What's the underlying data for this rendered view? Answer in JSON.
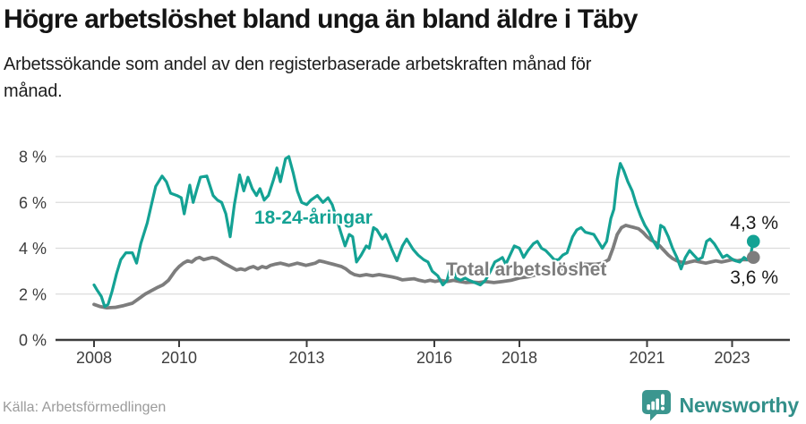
{
  "header": {
    "title": "Högre arbetslöshet bland unga än bland äldre i Täby",
    "subtitle_line1": "Arbetssökande som andel av den registerbaserade arbetskraften månad för",
    "subtitle_line2": "månad."
  },
  "chart_data": {
    "type": "line",
    "title": "Högre arbetslöshet bland unga än bland äldre i Täby",
    "subtitle": "Arbetssökande som andel av den registerbaserade arbetskraften månad för månad.",
    "xlabel": "",
    "ylabel": "",
    "ylim": [
      0,
      8
    ],
    "grid": true,
    "legend_position": "inline-labels",
    "y_ticks": [
      {
        "value": 0,
        "label": "0 %"
      },
      {
        "value": 2,
        "label": "2 %"
      },
      {
        "value": 4,
        "label": "4 %"
      },
      {
        "value": 6,
        "label": "6 %"
      },
      {
        "value": 8,
        "label": "8 %"
      }
    ],
    "x_ticks": [
      {
        "value": 2008,
        "label": "2008"
      },
      {
        "value": 2010,
        "label": "2010"
      },
      {
        "value": 2013,
        "label": "2013"
      },
      {
        "value": 2016,
        "label": "2016"
      },
      {
        "value": 2018,
        "label": "2018"
      },
      {
        "value": 2021,
        "label": "2021"
      },
      {
        "value": 2023,
        "label": "2023"
      }
    ],
    "series": [
      {
        "id": "total",
        "name": "Total arbetslöshet",
        "color": "#7d7d7d",
        "end_label": "3,6 %",
        "end_value": 3.6,
        "points": [
          [
            2008.0,
            1.55
          ],
          [
            2008.15,
            1.45
          ],
          [
            2008.3,
            1.4
          ],
          [
            2008.5,
            1.42
          ],
          [
            2008.7,
            1.5
          ],
          [
            2008.9,
            1.6
          ],
          [
            2009.05,
            1.8
          ],
          [
            2009.2,
            2.0
          ],
          [
            2009.35,
            2.15
          ],
          [
            2009.5,
            2.3
          ],
          [
            2009.62,
            2.4
          ],
          [
            2009.75,
            2.6
          ],
          [
            2009.9,
            3.0
          ],
          [
            2010.0,
            3.2
          ],
          [
            2010.1,
            3.35
          ],
          [
            2010.2,
            3.45
          ],
          [
            2010.3,
            3.4
          ],
          [
            2010.4,
            3.55
          ],
          [
            2010.48,
            3.6
          ],
          [
            2010.58,
            3.5
          ],
          [
            2010.68,
            3.55
          ],
          [
            2010.78,
            3.6
          ],
          [
            2010.88,
            3.55
          ],
          [
            2010.97,
            3.45
          ],
          [
            2011.05,
            3.35
          ],
          [
            2011.15,
            3.25
          ],
          [
            2011.25,
            3.15
          ],
          [
            2011.35,
            3.05
          ],
          [
            2011.45,
            3.1
          ],
          [
            2011.55,
            3.05
          ],
          [
            2011.65,
            3.15
          ],
          [
            2011.75,
            3.2
          ],
          [
            2011.85,
            3.1
          ],
          [
            2011.95,
            3.2
          ],
          [
            2012.05,
            3.15
          ],
          [
            2012.15,
            3.25
          ],
          [
            2012.25,
            3.3
          ],
          [
            2012.38,
            3.35
          ],
          [
            2012.48,
            3.3
          ],
          [
            2012.58,
            3.25
          ],
          [
            2012.68,
            3.3
          ],
          [
            2012.78,
            3.35
          ],
          [
            2012.88,
            3.3
          ],
          [
            2012.98,
            3.25
          ],
          [
            2013.1,
            3.3
          ],
          [
            2013.2,
            3.35
          ],
          [
            2013.3,
            3.45
          ],
          [
            2013.42,
            3.4
          ],
          [
            2013.52,
            3.35
          ],
          [
            2013.62,
            3.3
          ],
          [
            2013.72,
            3.25
          ],
          [
            2013.82,
            3.2
          ],
          [
            2013.92,
            3.1
          ],
          [
            2014.02,
            2.95
          ],
          [
            2014.12,
            2.85
          ],
          [
            2014.25,
            2.8
          ],
          [
            2014.4,
            2.85
          ],
          [
            2014.55,
            2.8
          ],
          [
            2014.7,
            2.85
          ],
          [
            2014.85,
            2.8
          ],
          [
            2015.0,
            2.75
          ],
          [
            2015.12,
            2.7
          ],
          [
            2015.25,
            2.62
          ],
          [
            2015.4,
            2.65
          ],
          [
            2015.52,
            2.67
          ],
          [
            2015.65,
            2.6
          ],
          [
            2015.78,
            2.55
          ],
          [
            2015.9,
            2.6
          ],
          [
            2016.02,
            2.55
          ],
          [
            2016.15,
            2.6
          ],
          [
            2016.3,
            2.55
          ],
          [
            2016.45,
            2.6
          ],
          [
            2016.6,
            2.55
          ],
          [
            2016.75,
            2.5
          ],
          [
            2016.9,
            2.52
          ],
          [
            2017.05,
            2.5
          ],
          [
            2017.2,
            2.55
          ],
          [
            2017.4,
            2.5
          ],
          [
            2017.6,
            2.55
          ],
          [
            2017.8,
            2.6
          ],
          [
            2018.0,
            2.7
          ],
          [
            2018.2,
            2.75
          ],
          [
            2018.4,
            2.85
          ],
          [
            2018.6,
            2.9
          ],
          [
            2018.8,
            3.0
          ],
          [
            2019.0,
            3.1
          ],
          [
            2019.2,
            3.2
          ],
          [
            2019.4,
            3.3
          ],
          [
            2019.6,
            3.3
          ],
          [
            2019.8,
            3.3
          ],
          [
            2019.95,
            3.35
          ],
          [
            2020.1,
            3.5
          ],
          [
            2020.2,
            4.0
          ],
          [
            2020.3,
            4.6
          ],
          [
            2020.4,
            4.9
          ],
          [
            2020.5,
            5.0
          ],
          [
            2020.6,
            4.95
          ],
          [
            2020.7,
            4.9
          ],
          [
            2020.8,
            4.85
          ],
          [
            2020.9,
            4.7
          ],
          [
            2021.0,
            4.5
          ],
          [
            2021.1,
            4.35
          ],
          [
            2021.2,
            4.25
          ],
          [
            2021.3,
            4.1
          ],
          [
            2021.4,
            3.9
          ],
          [
            2021.5,
            3.7
          ],
          [
            2021.6,
            3.55
          ],
          [
            2021.7,
            3.45
          ],
          [
            2021.8,
            3.4
          ],
          [
            2021.9,
            3.35
          ],
          [
            2022.0,
            3.4
          ],
          [
            2022.12,
            3.45
          ],
          [
            2022.25,
            3.4
          ],
          [
            2022.38,
            3.35
          ],
          [
            2022.5,
            3.4
          ],
          [
            2022.62,
            3.45
          ],
          [
            2022.75,
            3.4
          ],
          [
            2022.88,
            3.45
          ],
          [
            2023.0,
            3.5
          ],
          [
            2023.12,
            3.45
          ],
          [
            2023.25,
            3.5
          ],
          [
            2023.38,
            3.5
          ],
          [
            2023.5,
            3.6
          ]
        ]
      },
      {
        "id": "youth",
        "name": "18-24-åringar",
        "color": "#14A294",
        "end_label": "4,3 %",
        "end_value": 4.3,
        "points": [
          [
            2008.0,
            2.4
          ],
          [
            2008.08,
            2.15
          ],
          [
            2008.17,
            1.9
          ],
          [
            2008.25,
            1.45
          ],
          [
            2008.33,
            1.55
          ],
          [
            2008.42,
            2.1
          ],
          [
            2008.53,
            2.9
          ],
          [
            2008.63,
            3.5
          ],
          [
            2008.75,
            3.8
          ],
          [
            2008.9,
            3.8
          ],
          [
            2009.0,
            3.35
          ],
          [
            2009.1,
            4.2
          ],
          [
            2009.15,
            4.5
          ],
          [
            2009.25,
            5.1
          ],
          [
            2009.35,
            5.9
          ],
          [
            2009.45,
            6.7
          ],
          [
            2009.6,
            7.15
          ],
          [
            2009.7,
            6.9
          ],
          [
            2009.8,
            6.4
          ],
          [
            2009.95,
            6.3
          ],
          [
            2010.05,
            6.2
          ],
          [
            2010.12,
            5.5
          ],
          [
            2010.25,
            6.75
          ],
          [
            2010.33,
            6.0
          ],
          [
            2010.42,
            6.6
          ],
          [
            2010.5,
            7.1
          ],
          [
            2010.65,
            7.15
          ],
          [
            2010.8,
            6.3
          ],
          [
            2010.9,
            6.1
          ],
          [
            2011.0,
            6.0
          ],
          [
            2011.1,
            5.5
          ],
          [
            2011.2,
            4.5
          ],
          [
            2011.3,
            5.9
          ],
          [
            2011.42,
            7.2
          ],
          [
            2011.52,
            6.5
          ],
          [
            2011.62,
            7.1
          ],
          [
            2011.72,
            6.6
          ],
          [
            2011.82,
            6.3
          ],
          [
            2011.9,
            6.6
          ],
          [
            2012.0,
            6.1
          ],
          [
            2012.1,
            6.3
          ],
          [
            2012.22,
            7.0
          ],
          [
            2012.3,
            7.5
          ],
          [
            2012.38,
            6.9
          ],
          [
            2012.5,
            7.9
          ],
          [
            2012.58,
            8.0
          ],
          [
            2012.68,
            7.3
          ],
          [
            2012.78,
            6.5
          ],
          [
            2012.88,
            6.0
          ],
          [
            2013.0,
            5.9
          ],
          [
            2013.1,
            6.1
          ],
          [
            2013.25,
            6.3
          ],
          [
            2013.38,
            6.0
          ],
          [
            2013.5,
            6.2
          ],
          [
            2013.6,
            5.9
          ],
          [
            2013.7,
            5.3
          ],
          [
            2013.8,
            4.7
          ],
          [
            2013.9,
            4.1
          ],
          [
            2014.0,
            4.6
          ],
          [
            2014.08,
            4.5
          ],
          [
            2014.17,
            3.4
          ],
          [
            2014.28,
            3.7
          ],
          [
            2014.4,
            4.1
          ],
          [
            2014.47,
            4.0
          ],
          [
            2014.57,
            4.9
          ],
          [
            2014.65,
            4.8
          ],
          [
            2014.78,
            4.4
          ],
          [
            2014.86,
            4.6
          ],
          [
            2015.0,
            3.95
          ],
          [
            2015.12,
            3.45
          ],
          [
            2015.25,
            4.1
          ],
          [
            2015.35,
            4.4
          ],
          [
            2015.5,
            3.95
          ],
          [
            2015.62,
            3.7
          ],
          [
            2015.75,
            3.5
          ],
          [
            2015.85,
            3.4
          ],
          [
            2015.95,
            3.0
          ],
          [
            2016.08,
            2.8
          ],
          [
            2016.2,
            2.4
          ],
          [
            2016.3,
            2.6
          ],
          [
            2016.4,
            3.3
          ],
          [
            2016.5,
            2.7
          ],
          [
            2016.62,
            2.6
          ],
          [
            2016.72,
            2.7
          ],
          [
            2016.82,
            2.6
          ],
          [
            2016.95,
            2.5
          ],
          [
            2017.08,
            2.4
          ],
          [
            2017.2,
            2.6
          ],
          [
            2017.32,
            3.0
          ],
          [
            2017.42,
            3.4
          ],
          [
            2017.52,
            3.5
          ],
          [
            2017.6,
            3.6
          ],
          [
            2017.68,
            3.3
          ],
          [
            2017.78,
            3.7
          ],
          [
            2017.88,
            4.1
          ],
          [
            2018.0,
            4.0
          ],
          [
            2018.1,
            3.6
          ],
          [
            2018.2,
            3.9
          ],
          [
            2018.33,
            4.2
          ],
          [
            2018.42,
            4.3
          ],
          [
            2018.52,
            4.0
          ],
          [
            2018.62,
            3.9
          ],
          [
            2018.72,
            3.7
          ],
          [
            2018.82,
            3.5
          ],
          [
            2018.92,
            3.5
          ],
          [
            2019.02,
            3.7
          ],
          [
            2019.12,
            3.8
          ],
          [
            2019.25,
            4.5
          ],
          [
            2019.35,
            4.8
          ],
          [
            2019.45,
            4.9
          ],
          [
            2019.55,
            4.7
          ],
          [
            2019.65,
            4.65
          ],
          [
            2019.75,
            4.6
          ],
          [
            2019.85,
            4.3
          ],
          [
            2019.95,
            4.0
          ],
          [
            2020.05,
            4.3
          ],
          [
            2020.15,
            5.3
          ],
          [
            2020.22,
            5.7
          ],
          [
            2020.3,
            7.0
          ],
          [
            2020.37,
            7.7
          ],
          [
            2020.45,
            7.4
          ],
          [
            2020.55,
            6.9
          ],
          [
            2020.65,
            6.5
          ],
          [
            2020.75,
            5.9
          ],
          [
            2020.85,
            5.4
          ],
          [
            2020.95,
            5.0
          ],
          [
            2021.05,
            4.7
          ],
          [
            2021.15,
            4.3
          ],
          [
            2021.25,
            4.0
          ],
          [
            2021.32,
            5.0
          ],
          [
            2021.4,
            4.9
          ],
          [
            2021.5,
            4.5
          ],
          [
            2021.6,
            4.0
          ],
          [
            2021.7,
            3.6
          ],
          [
            2021.8,
            3.1
          ],
          [
            2021.9,
            3.6
          ],
          [
            2022.0,
            3.9
          ],
          [
            2022.1,
            3.7
          ],
          [
            2022.2,
            3.5
          ],
          [
            2022.3,
            3.6
          ],
          [
            2022.4,
            4.3
          ],
          [
            2022.48,
            4.4
          ],
          [
            2022.58,
            4.2
          ],
          [
            2022.68,
            3.9
          ],
          [
            2022.78,
            3.6
          ],
          [
            2022.88,
            3.7
          ],
          [
            2022.98,
            3.55
          ],
          [
            2023.08,
            3.45
          ],
          [
            2023.18,
            3.4
          ],
          [
            2023.28,
            3.6
          ],
          [
            2023.35,
            3.5
          ],
          [
            2023.42,
            3.6
          ],
          [
            2023.5,
            4.3
          ]
        ]
      }
    ]
  },
  "footer": {
    "source": "Källa: Arbetsförmedlingen",
    "brand": "Newsworthy"
  },
  "colors": {
    "accent_teal": "#14A294",
    "line_gray": "#7d7d7d",
    "brand_teal": "#3B968F",
    "gridline": "#dcdcdc",
    "axis": "#3c3c3c"
  }
}
